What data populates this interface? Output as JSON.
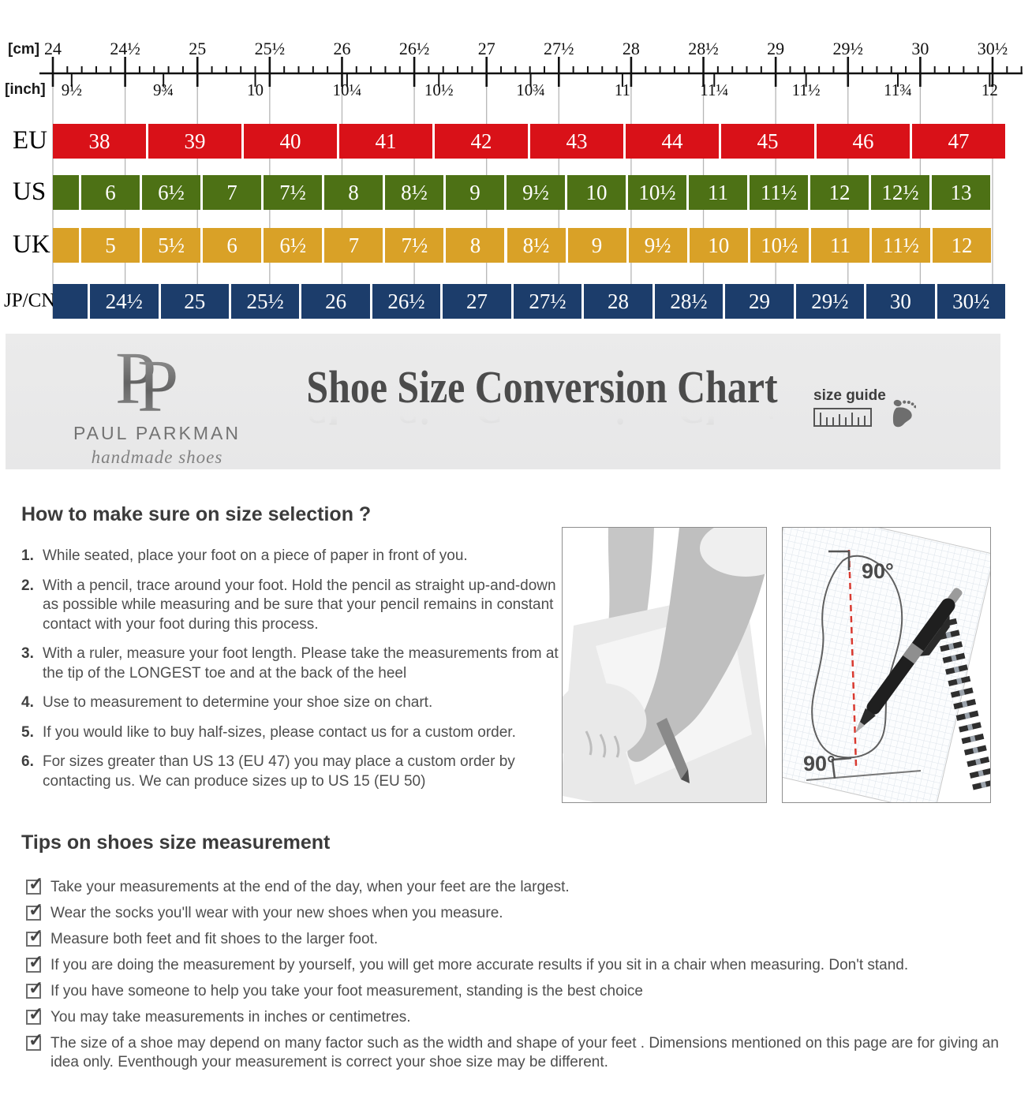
{
  "chart_data": {
    "type": "table",
    "title": "Shoe Size Conversion Chart",
    "ruler": {
      "cm_unit_label": "[cm]",
      "inch_unit_label": "[inch]",
      "cm_min": 24,
      "cm_max": 30.5,
      "cm_tick_labels": [
        "24",
        "24½",
        "25",
        "25½",
        "26",
        "26½",
        "27",
        "27½",
        "28",
        "28½",
        "29",
        "29½",
        "30",
        "30½"
      ],
      "inch_ticks": [
        {
          "inch": 9.5,
          "label": "9½"
        },
        {
          "inch": 9.75,
          "label": "9¾"
        },
        {
          "inch": 10,
          "label": "10"
        },
        {
          "inch": 10.25,
          "label": "10¼"
        },
        {
          "inch": 10.5,
          "label": "10½"
        },
        {
          "inch": 10.75,
          "label": "10¾"
        },
        {
          "inch": 11,
          "label": "11"
        },
        {
          "inch": 11.25,
          "label": "11¼"
        },
        {
          "inch": 11.5,
          "label": "11½"
        },
        {
          "inch": 11.75,
          "label": "11¾"
        },
        {
          "inch": 12,
          "label": "12"
        }
      ]
    },
    "rows": [
      {
        "label": "EU",
        "color": "#d91118",
        "values": [
          "38",
          "39",
          "40",
          "41",
          "42",
          "43",
          "44",
          "45",
          "46",
          "47"
        ]
      },
      {
        "label": "US",
        "color": "#4d7115",
        "values": [
          "6",
          "6½",
          "7",
          "7½",
          "8",
          "8½",
          "9",
          "9½",
          "10",
          "10½",
          "11",
          "11½",
          "12",
          "12½",
          "13"
        ]
      },
      {
        "label": "UK",
        "color": "#d9a127",
        "values": [
          "5",
          "5½",
          "6",
          "6½",
          "7",
          "7½",
          "8",
          "8½",
          "9",
          "9½",
          "10",
          "10½",
          "11",
          "11½",
          "12"
        ]
      },
      {
        "label": "JP/CN",
        "color": "#1c3d6b",
        "values": [
          "24½",
          "25",
          "25½",
          "26",
          "26½",
          "27",
          "27½",
          "28",
          "28½",
          "29",
          "29½",
          "30",
          "30½"
        ]
      }
    ]
  },
  "banner": {
    "logo_monogram": "PP",
    "logo_name": "PAUL PARKMAN",
    "logo_tagline": "handmade shoes",
    "title": "Shoe Size Conversion Chart",
    "size_guide_label": "size guide"
  },
  "howto": {
    "heading": "How to make sure on size selection ?",
    "steps": [
      {
        "num": "1.",
        "text": "While seated, place your foot on a piece of paper in front of you."
      },
      {
        "num": "2.",
        "text": "With a pencil, trace around your foot. Hold the pencil as straight up-and-down as possible while measuring and be sure that your pencil remains in constant contact with your foot during this process."
      },
      {
        "num": "3.",
        "text": "With a ruler, measure your foot length. Please take the measurements from at the tip of the LONGEST toe and at the back of the heel"
      },
      {
        "num": "4.",
        "text": "Use to measurement to determine your shoe size on chart."
      },
      {
        "num": "5.",
        "text": "If you would like to buy half-sizes, please contact us for a custom order."
      },
      {
        "num": "6.",
        "text": "For sizes greater than US 13 (EU 47) you may place a custom order by contacting us. We can produce sizes up to US 15 (EU 50)"
      }
    ]
  },
  "tips": {
    "heading": "Tips on shoes size measurement",
    "items": [
      "Take your measurements at the end of the day, when your feet are the largest.",
      "Wear the socks you'll wear with your new shoes when you measure.",
      "Measure both feet and fit shoes to the larger foot.",
      "If you are doing the measurement by yourself, you will get more accurate results if you sit in a chair when measuring. Don't stand.",
      "If you have someone to help you take your foot measurement, standing is the best choice",
      "You may take measurements in inches or centimetres.",
      "The size of a shoe may depend on many factor such as the width and shape of your feet . Dimensions mentioned on this page are for giving an idea only. Eventhough your measurement is correct your shoe size may be different."
    ]
  },
  "figures": {
    "angle_label_top": "90°",
    "angle_label_bottom": "90°"
  }
}
